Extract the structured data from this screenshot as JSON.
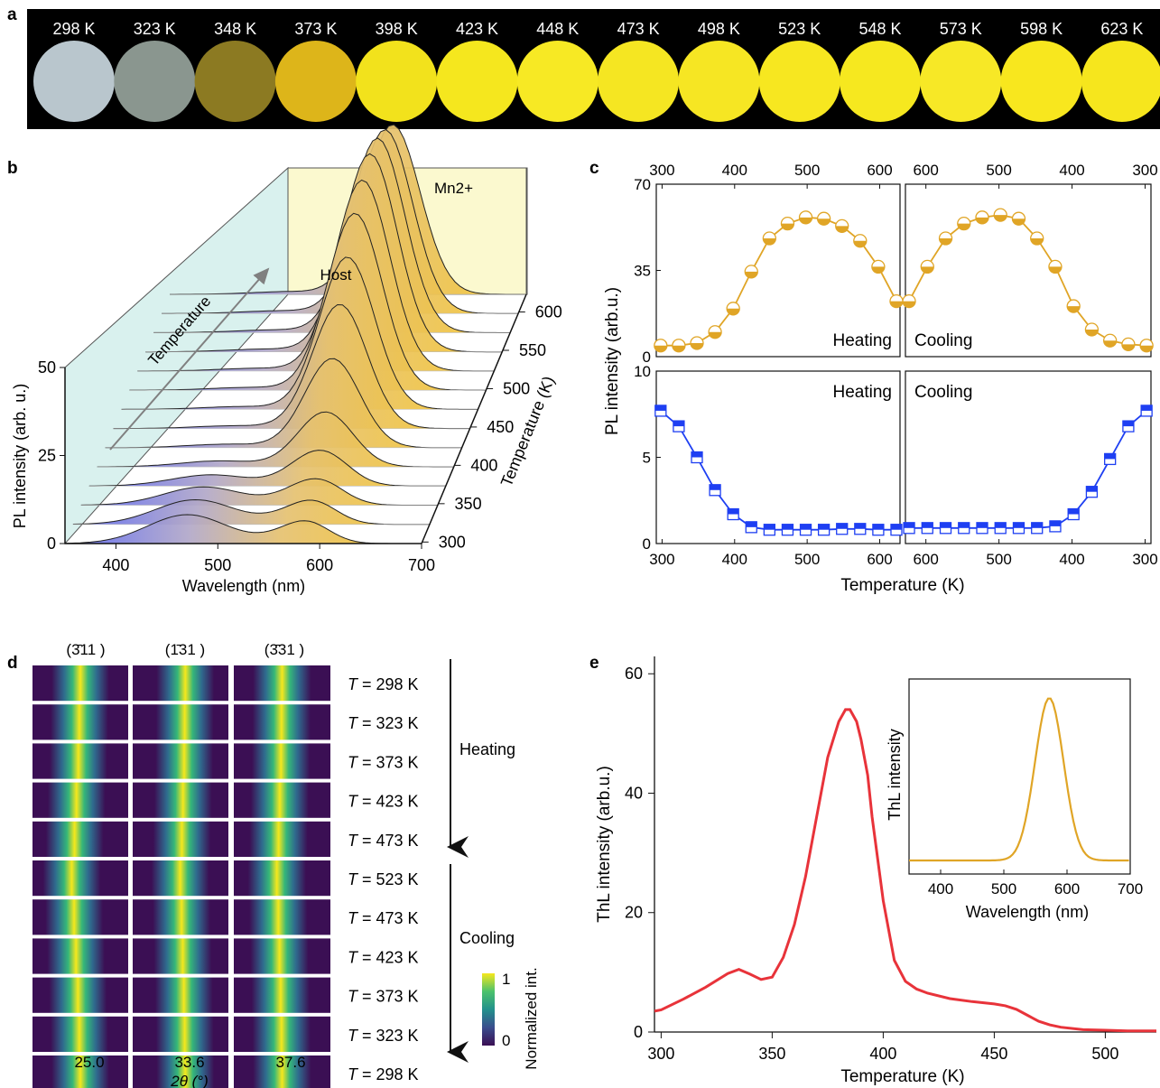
{
  "panel_letters": [
    "a",
    "b",
    "c",
    "d",
    "e"
  ],
  "panel_a": {
    "temperatures": [
      "298 K",
      "323 K",
      "348 K",
      "373 K",
      "398 K",
      "423 K",
      "448 K",
      "473 K",
      "498 K",
      "523 K",
      "548 K",
      "573 K",
      "598 K",
      "623 K"
    ],
    "swatch_colors": [
      "#b9c6cd",
      "#8a968f",
      "#8c7a22",
      "#ddb51a",
      "#f2e21c",
      "#f5e71e",
      "#f7e924",
      "#f5e622",
      "#f6e623",
      "#f7e720",
      "#f6e81f",
      "#f7e826",
      "#f8e71e",
      "#f6e61d"
    ]
  },
  "chart_data": [
    {
      "id": "b",
      "type": "line",
      "xlabel": "Wavelength (nm)",
      "ylabel": "PL intensity (arb. u.)",
      "zlabel": "Temperature (K)",
      "x_ticks": [
        400,
        500,
        600,
        700
      ],
      "y_ticks": [
        0,
        25,
        50
      ],
      "z_ticks": [
        300,
        350,
        400,
        450,
        500,
        550,
        600
      ],
      "annotations": [
        "Host",
        "Mn2+",
        "Temperature"
      ],
      "series": [
        {
          "temperature": 298,
          "host_peak": 8.2,
          "mn_peak": 3.0
        },
        {
          "temperature": 323,
          "host_peak": 7.0,
          "mn_peak": 4.0
        },
        {
          "temperature": 348,
          "host_peak": 5.2,
          "mn_peak": 5.5
        },
        {
          "temperature": 373,
          "host_peak": 3.2,
          "mn_peak": 9.0
        },
        {
          "temperature": 398,
          "host_peak": 1.7,
          "mn_peak": 15.0
        },
        {
          "temperature": 423,
          "host_peak": 1.0,
          "mn_peak": 25.0
        },
        {
          "temperature": 448,
          "host_peak": 0.8,
          "mn_peak": 35.0
        },
        {
          "temperature": 473,
          "host_peak": 0.8,
          "mn_peak": 43.0
        },
        {
          "temperature": 498,
          "host_peak": 0.8,
          "mn_peak": 50.0
        },
        {
          "temperature": 523,
          "host_peak": 0.8,
          "mn_peak": 54.0
        },
        {
          "temperature": 548,
          "host_peak": 0.8,
          "mn_peak": 56.0
        },
        {
          "temperature": 573,
          "host_peak": 0.8,
          "mn_peak": 55.0
        },
        {
          "temperature": 598,
          "host_peak": 0.8,
          "mn_peak": 52.0
        },
        {
          "temperature": 623,
          "host_peak": 0.8,
          "mn_peak": 48.0
        }
      ]
    },
    {
      "id": "c",
      "type": "line",
      "xlabel": "Temperature (K)",
      "ylabel": "PL intensity (arb.u.)",
      "top": {
        "ylim": [
          0,
          70
        ],
        "y_ticks": [
          0,
          35,
          70
        ],
        "color": "#e0a526"
      },
      "bottom": {
        "ylim": [
          0,
          10
        ],
        "y_ticks": [
          0,
          5,
          10
        ],
        "color": "#1e3ff2"
      },
      "heating_label": "Heating",
      "cooling_label": "Cooling",
      "heating_x_ticks": [
        300,
        400,
        500,
        600
      ],
      "cooling_x_ticks": [
        600,
        500,
        400,
        300
      ],
      "heating_x": [
        298,
        323,
        348,
        373,
        398,
        423,
        448,
        473,
        498,
        523,
        548,
        573,
        598,
        623
      ],
      "cooling_x": [
        623,
        598,
        573,
        548,
        523,
        498,
        473,
        448,
        423,
        398,
        373,
        348,
        323,
        298
      ],
      "top_heating": [
        4.5,
        4.5,
        5.5,
        10,
        19.5,
        34.5,
        48,
        54,
        56.5,
        56,
        53,
        47,
        36.5,
        22.5
      ],
      "top_cooling": [
        22.5,
        36.5,
        48,
        54,
        56.5,
        57.5,
        56,
        48,
        36.5,
        20.5,
        11,
        6.5,
        5,
        4.5
      ],
      "bottom_heating": [
        7.7,
        6.8,
        5,
        3.1,
        1.7,
        0.95,
        0.8,
        0.8,
        0.8,
        0.8,
        0.85,
        0.85,
        0.8,
        0.8
      ],
      "bottom_cooling": [
        0.9,
        0.9,
        0.9,
        0.9,
        0.9,
        0.9,
        0.9,
        0.9,
        1.0,
        1.7,
        3.0,
        4.9,
        6.8,
        7.7
      ]
    },
    {
      "id": "d",
      "type": "heatmap",
      "columns": [
        {
          "label": "(3̄11 )",
          "center": "25.0"
        },
        {
          "label": "(1̄31 )",
          "center": "33.6"
        },
        {
          "label": "(3̄31 )",
          "center": "37.6"
        }
      ],
      "rows": [
        "298 K",
        "323 K",
        "373 K",
        "423 K",
        "473 K",
        "523 K",
        "473 K",
        "423 K",
        "373 K",
        "323 K",
        "298 K"
      ],
      "peak_offsets": [
        0,
        0.01,
        0.02,
        0.04,
        0.06,
        0.09,
        0.065,
        0.045,
        0.025,
        0.01,
        0
      ],
      "row_prefix": "T",
      "row_eq": " = ",
      "xlabel": "2θ (°)",
      "heating_label": "Heating",
      "cooling_label": "Cooling",
      "colorbar_label": "Normalized int.",
      "colorbar_ticks": [
        "1",
        "0"
      ]
    },
    {
      "id": "e",
      "type": "line",
      "xlabel": "Temperature (K)",
      "ylabel": "ThL intensity (arb.u.)",
      "xlim": [
        297,
        523
      ],
      "ylim": [
        0,
        62
      ],
      "x_ticks": [
        300,
        350,
        400,
        450,
        500
      ],
      "y_ticks": [
        0,
        20,
        40,
        60
      ],
      "color": "#e8333a",
      "x": [
        297,
        300,
        310,
        320,
        330,
        335,
        340,
        345,
        350,
        355,
        360,
        365,
        370,
        375,
        380,
        383,
        385,
        388,
        390,
        393,
        395,
        400,
        405,
        410,
        415,
        420,
        430,
        440,
        450,
        455,
        460,
        465,
        470,
        475,
        480,
        490,
        500,
        510,
        523
      ],
      "y": [
        3.5,
        3.7,
        5.5,
        7.5,
        9.8,
        10.5,
        9.7,
        8.8,
        9.2,
        12.5,
        18,
        26,
        36,
        46,
        52,
        54,
        54,
        52,
        49,
        43,
        36,
        22,
        12,
        8.5,
        7.2,
        6.5,
        5.6,
        5.1,
        4.7,
        4.4,
        3.8,
        2.8,
        1.8,
        1.2,
        0.8,
        0.4,
        0.3,
        0.2,
        0.2
      ],
      "inset": {
        "xlabel": "Wavelength (nm)",
        "ylabel": "ThL intensity",
        "xlim": [
          350,
          700
        ],
        "x_ticks": [
          400,
          500,
          600,
          700
        ],
        "color": "#e0a526",
        "peak": 572
      }
    }
  ]
}
